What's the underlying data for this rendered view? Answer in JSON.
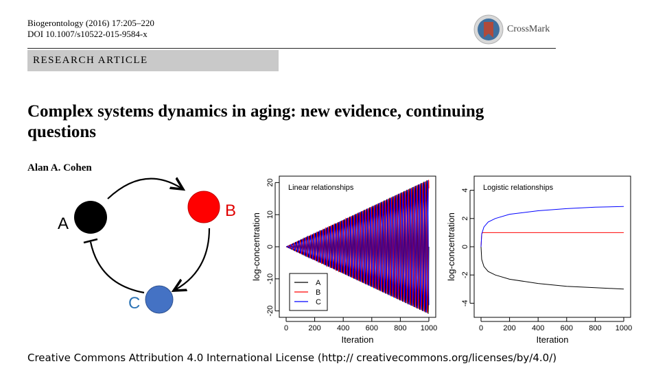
{
  "header": {
    "journal_line": "Biogerontology (2016) 17:205–220",
    "doi_line": "DOI 10.1007/s10522-015-9584-x",
    "crossmark_label": "CrossMark",
    "article_type": "RESEARCH ARTICLE"
  },
  "paper": {
    "title": "Complex systems dynamics in aging: new evidence, continuing questions",
    "author": "Alan A. Cohen"
  },
  "diagram": {
    "nodes": [
      {
        "id": "A",
        "label": "A",
        "color": "#000000"
      },
      {
        "id": "B",
        "label": "B",
        "color": "#ff0000"
      },
      {
        "id": "C",
        "label": "C",
        "color": "#4472c4"
      }
    ],
    "edges": [
      {
        "from": "A",
        "to": "B",
        "kind": "activation"
      },
      {
        "from": "B",
        "to": "C",
        "kind": "activation"
      },
      {
        "from": "C",
        "to": "A",
        "kind": "inhibition"
      }
    ]
  },
  "chart_data": [
    {
      "type": "line",
      "title": "Linear relationships",
      "xlabel": "Iteration",
      "ylabel": "log-concentration",
      "xlim": [
        0,
        1000
      ],
      "ylim": [
        -22,
        22
      ],
      "xticks": [
        0,
        200,
        400,
        600,
        800,
        1000
      ],
      "yticks": [
        -20,
        -10,
        0,
        10,
        20
      ],
      "grid": false,
      "legend": "bottom-left",
      "series": [
        {
          "name": "A",
          "color": "#000000",
          "pattern": "oscillation with linearly growing amplitude",
          "x": [
            0,
            1000
          ],
          "amplitude": [
            0,
            21
          ],
          "period_iterations": 20,
          "phase": 0
        },
        {
          "name": "B",
          "color": "#ff0000",
          "pattern": "oscillation with linearly growing amplitude",
          "x": [
            0,
            1000
          ],
          "amplitude": [
            0,
            21
          ],
          "period_iterations": 20,
          "phase": 2.094
        },
        {
          "name": "C",
          "color": "#0000ff",
          "pattern": "oscillation with linearly growing amplitude",
          "x": [
            0,
            1000
          ],
          "amplitude": [
            0,
            21
          ],
          "period_iterations": 20,
          "phase": 4.189
        }
      ]
    },
    {
      "type": "line",
      "title": "Logistic relationships",
      "xlabel": "Iteration",
      "ylabel": "log-concentration",
      "xlim": [
        0,
        1000
      ],
      "ylim": [
        -5,
        5
      ],
      "xticks": [
        0,
        200,
        400,
        600,
        800,
        1000
      ],
      "yticks": [
        -4,
        -2,
        0,
        2,
        4
      ],
      "grid": false,
      "legend": "none",
      "series": [
        {
          "name": "A",
          "color": "#000000",
          "x": [
            0,
            5,
            20,
            50,
            100,
            200,
            400,
            600,
            800,
            1000
          ],
          "y": [
            0,
            -0.9,
            -1.4,
            -1.75,
            -2.0,
            -2.3,
            -2.6,
            -2.8,
            -2.9,
            -3.0
          ]
        },
        {
          "name": "B",
          "color": "#ff0000",
          "x": [
            0,
            5,
            10,
            20,
            50,
            100,
            400,
            1000
          ],
          "y": [
            0,
            0.9,
            1.0,
            1.0,
            1.0,
            1.0,
            1.0,
            1.0
          ]
        },
        {
          "name": "C",
          "color": "#0000ff",
          "x": [
            0,
            5,
            20,
            50,
            100,
            200,
            400,
            600,
            800,
            1000
          ],
          "y": [
            0,
            0.9,
            1.4,
            1.75,
            2.0,
            2.3,
            2.55,
            2.7,
            2.8,
            2.85
          ]
        }
      ]
    }
  ],
  "footer": {
    "license": "Creative Commons Attribution 4.0 International License (http:// creativecommons.org/licenses/by/4.0/)"
  }
}
